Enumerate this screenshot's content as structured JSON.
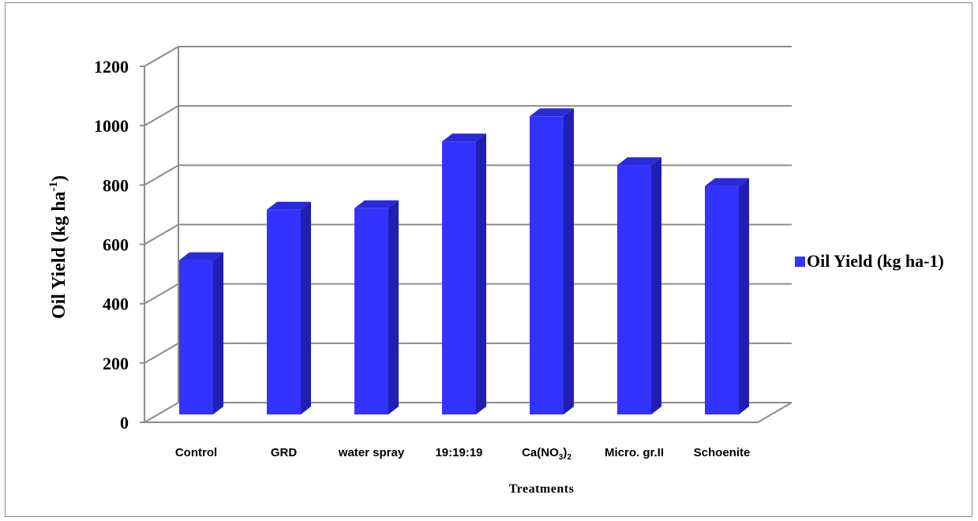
{
  "chart_data": {
    "type": "bar",
    "title": "",
    "xlabel": "Treatments",
    "ylabel_main": "Oil Yield (kg ha",
    "ylabel_sup": "-1",
    "ylabel_tail": ")",
    "ylim": [
      0,
      1200
    ],
    "yticks": [
      "0",
      "200",
      "400",
      "600",
      "800",
      "1000",
      "1200"
    ],
    "grid": true,
    "legend_position": "right",
    "categories": [
      {
        "main": "Control",
        "sub": "",
        "tail": ""
      },
      {
        "main": "GRD",
        "sub": "",
        "tail": ""
      },
      {
        "main": "water spray",
        "sub": "",
        "tail": ""
      },
      {
        "main": "19:19:19",
        "sub": "",
        "tail": ""
      },
      {
        "main": "Ca(NO",
        "sub": "3",
        "tail": ")",
        "sub2": "2"
      },
      {
        "main": "Micro. gr.II",
        "sub": "",
        "tail": ""
      },
      {
        "main": "Schoenite",
        "sub": "",
        "tail": ""
      }
    ],
    "series": [
      {
        "name": "Oil Yield (kg ha-1)",
        "values": [
          520,
          690,
          695,
          920,
          1005,
          840,
          770
        ]
      }
    ],
    "colors": {
      "bar_front": "#3333ff",
      "bar_side": "#1f1fb3",
      "bar_top": "#2a2ad6",
      "grid": "#8c8c8c"
    }
  }
}
